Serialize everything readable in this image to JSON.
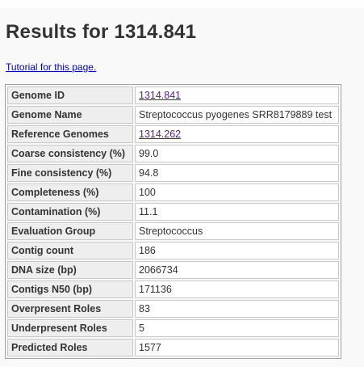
{
  "page": {
    "title": "Results for 1314.841",
    "tutorial_link": "Tutorial for this page."
  },
  "rows": [
    {
      "label": "Genome ID",
      "value": "1314.841",
      "link": true
    },
    {
      "label": "Genome Name",
      "value": "Streptococcus pyogenes SRR8179889 test",
      "link": false
    },
    {
      "label": "Reference Genomes",
      "value": "1314.262",
      "link": true
    },
    {
      "label": "Coarse consistency (%)",
      "value": "99.0",
      "link": false
    },
    {
      "label": "Fine consistency (%)",
      "value": "94.8",
      "link": false
    },
    {
      "label": "Completeness (%)",
      "value": "100",
      "link": false
    },
    {
      "label": "Contamination (%)",
      "value": "11.1",
      "link": false
    },
    {
      "label": "Evaluation Group",
      "value": "Streptococcus",
      "link": false
    },
    {
      "label": "Contig count",
      "value": "186",
      "link": false
    },
    {
      "label": "DNA size (bp)",
      "value": "2066734",
      "link": false
    },
    {
      "label": "Contigs N50 (bp)",
      "value": "171136",
      "link": false
    },
    {
      "label": "Overpresent Roles",
      "value": "83",
      "link": false
    },
    {
      "label": "Underpresent Roles",
      "value": "5",
      "link": false
    },
    {
      "label": "Predicted Roles",
      "value": "1577",
      "link": false
    }
  ],
  "colors": {
    "link": "#0000cc",
    "visited_link": "#551a8b",
    "label_bg": "#eeeeee",
    "value_bg": "#ffffff"
  }
}
